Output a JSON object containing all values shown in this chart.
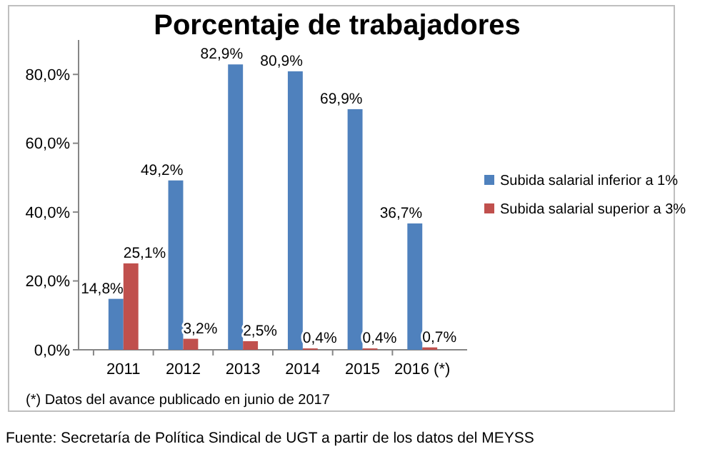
{
  "chart_data": {
    "type": "bar",
    "title": "Porcentaje de trabajadores",
    "categories": [
      "2011",
      "2012",
      "2013",
      "2014",
      "2015",
      "2016 (*)"
    ],
    "series": [
      {
        "name": "Subida salarial inferior a 1%",
        "color": "#4f81bd",
        "values": [
          14.8,
          49.2,
          82.9,
          80.9,
          69.9,
          36.7
        ],
        "value_labels": [
          "14,8%",
          "49,2%",
          "82,9%",
          "80,9%",
          "69,9%",
          "36,7%"
        ]
      },
      {
        "name": "Subida salarial superior a 3%",
        "color": "#c0504d",
        "values": [
          25.1,
          3.2,
          2.5,
          0.4,
          0.4,
          0.7
        ],
        "value_labels": [
          "25,1%",
          "3,2%",
          "2,5%",
          "0,4%",
          "0,4%",
          "0,7%"
        ]
      }
    ],
    "ylim": [
      0,
      90
    ],
    "yticks": [
      {
        "value": 0,
        "label": "0,0%"
      },
      {
        "value": 20,
        "label": "20,0%"
      },
      {
        "value": 40,
        "label": "40,0%"
      },
      {
        "value": 60,
        "label": "60,0%"
      },
      {
        "value": 80,
        "label": "80,0%"
      }
    ],
    "grid": false,
    "legend": "right",
    "annotations": [
      "(*) Datos del avance publicado en junio de 2017",
      "Fuente: Secretaría de Política Sindical de UGT a partir de los datos del MEYSS"
    ]
  }
}
